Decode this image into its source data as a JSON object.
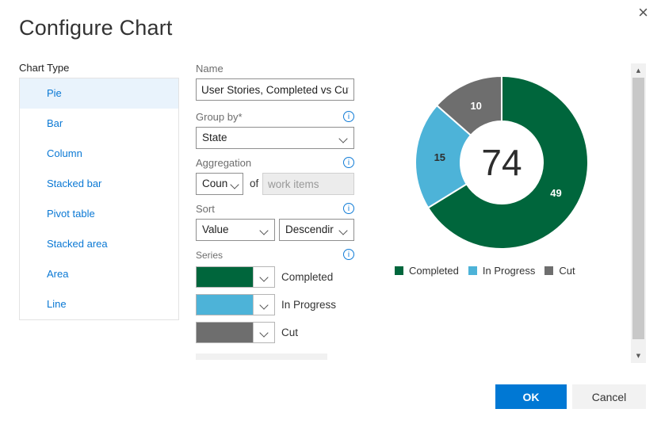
{
  "dialog": {
    "title": "Configure Chart"
  },
  "icons": {
    "close": "×",
    "info": "i",
    "scroll_up": "▲",
    "scroll_down": "▼"
  },
  "chart_type": {
    "label": "Chart Type",
    "selected_index": 0,
    "items": [
      "Pie",
      "Bar",
      "Column",
      "Stacked bar",
      "Pivot table",
      "Stacked area",
      "Area",
      "Line"
    ]
  },
  "form": {
    "name": {
      "label": "Name",
      "value": "User Stories, Completed vs Cut"
    },
    "group_by": {
      "label": "Group by*",
      "value": "State"
    },
    "aggregation": {
      "label": "Aggregation",
      "operator": "Coun",
      "of_label": "of",
      "target": "work items"
    },
    "sort": {
      "label": "Sort",
      "field": "Value",
      "direction": "Descendir"
    },
    "series": {
      "label": "Series",
      "items": [
        {
          "name": "Completed",
          "color": "#00663C"
        },
        {
          "name": "In Progress",
          "color": "#4DB3D8"
        },
        {
          "name": "Cut",
          "color": "#6E6E6E"
        }
      ]
    }
  },
  "chart_data": {
    "type": "pie",
    "subtype": "donut",
    "categories": [
      "Completed",
      "In Progress",
      "Cut"
    ],
    "values": [
      49,
      15,
      10
    ],
    "colors": [
      "#00663C",
      "#4DB3D8",
      "#6E6E6E"
    ],
    "label_colors": [
      "#ffffff",
      "#2e2e2e",
      "#ffffff"
    ],
    "center_total": "74",
    "inner_radius_ratio": 0.48,
    "start_angle_deg": 0,
    "legend": {
      "position": "bottom",
      "entries": [
        "Completed",
        "In Progress",
        "Cut"
      ]
    }
  },
  "footer": {
    "ok": "OK",
    "cancel": "Cancel"
  },
  "colors": {
    "accent": "#0078D4",
    "link": "#0A78D4",
    "selected_bg": "#E9F3FC"
  }
}
